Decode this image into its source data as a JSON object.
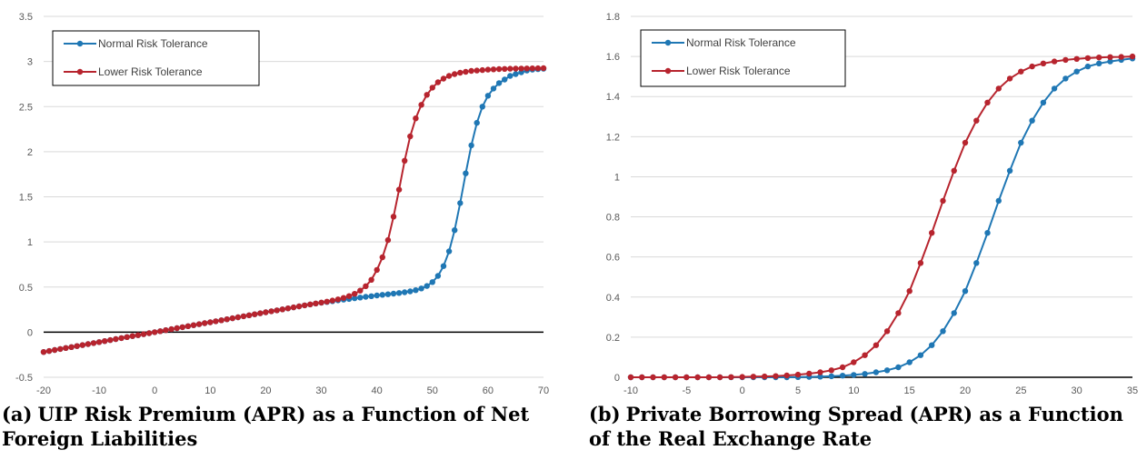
{
  "colors": {
    "normal": "#1f77b4",
    "lower": "#b7242e",
    "grid": "#d9d9d9",
    "zero_line": "#000000"
  },
  "captions": [
    {
      "label": "(a)",
      "text": "UIP Risk Premium (APR) as a Function of Net Foreign Liabilities"
    },
    {
      "label": "(b)",
      "text": "Private Borrowing Spread (APR) as a Function of the Real Exchange Rate"
    }
  ],
  "chart_data": [
    {
      "type": "line",
      "title": "",
      "xlabel": "",
      "ylabel": "",
      "xlim": [
        -20,
        70
      ],
      "ylim": [
        -0.5,
        3.5
      ],
      "xticks": [
        "-20",
        "-10",
        "0",
        "10",
        "20",
        "30",
        "40",
        "50",
        "60",
        "70"
      ],
      "yticks": [
        "-0.5",
        "0",
        "0.5",
        "1",
        "1.5",
        "2",
        "2.5",
        "3",
        "3.5"
      ],
      "grid": "horizontal",
      "legend": "top-left",
      "series": [
        {
          "name": "Normal Risk Tolerance",
          "color": "#1f77b4",
          "x": [
            -20,
            -19,
            -18,
            -17,
            -16,
            -15,
            -14,
            -13,
            -12,
            -11,
            -10,
            -9,
            -8,
            -7,
            -6,
            -5,
            -4,
            -3,
            -2,
            -1,
            0,
            1,
            2,
            3,
            4,
            5,
            6,
            7,
            8,
            9,
            10,
            11,
            12,
            13,
            14,
            15,
            16,
            17,
            18,
            19,
            20,
            21,
            22,
            23,
            24,
            25,
            26,
            27,
            28,
            29,
            30,
            31,
            32,
            33,
            34,
            35,
            36,
            37,
            38,
            39,
            40,
            41,
            42,
            43,
            44,
            45,
            46,
            47,
            48,
            49,
            50,
            51,
            52,
            53,
            54,
            55,
            56,
            57,
            58,
            59,
            60,
            61,
            62,
            63,
            64,
            65,
            66,
            67,
            68,
            69,
            70
          ],
          "y": [
            -0.22,
            -0.209,
            -0.198,
            -0.187,
            -0.176,
            -0.165,
            -0.154,
            -0.143,
            -0.132,
            -0.121,
            -0.11,
            -0.099,
            -0.088,
            -0.077,
            -0.066,
            -0.055,
            -0.044,
            -0.033,
            -0.022,
            -0.011,
            0,
            0.011,
            0.022,
            0.033,
            0.044,
            0.055,
            0.066,
            0.077,
            0.088,
            0.099,
            0.11,
            0.121,
            0.132,
            0.143,
            0.154,
            0.165,
            0.176,
            0.187,
            0.198,
            0.209,
            0.22,
            0.231,
            0.242,
            0.253,
            0.264,
            0.275,
            0.286,
            0.297,
            0.307,
            0.317,
            0.326,
            0.334,
            0.343,
            0.352,
            0.36,
            0.368,
            0.376,
            0.384,
            0.392,
            0.399,
            0.407,
            0.414,
            0.42,
            0.427,
            0.434,
            0.442,
            0.452,
            0.465,
            0.484,
            0.512,
            0.555,
            0.623,
            0.732,
            0.895,
            1.13,
            1.43,
            1.76,
            2.07,
            2.32,
            2.5,
            2.62,
            2.7,
            2.76,
            2.8,
            2.84,
            2.86,
            2.88,
            2.9,
            2.91,
            2.915,
            2.92
          ]
        },
        {
          "name": "Lower Risk Tolerance",
          "color": "#b7242e",
          "x": [
            -20,
            -19,
            -18,
            -17,
            -16,
            -15,
            -14,
            -13,
            -12,
            -11,
            -10,
            -9,
            -8,
            -7,
            -6,
            -5,
            -4,
            -3,
            -2,
            -1,
            0,
            1,
            2,
            3,
            4,
            5,
            6,
            7,
            8,
            9,
            10,
            11,
            12,
            13,
            14,
            15,
            16,
            17,
            18,
            19,
            20,
            21,
            22,
            23,
            24,
            25,
            26,
            27,
            28,
            29,
            30,
            31,
            32,
            33,
            34,
            35,
            36,
            37,
            38,
            39,
            40,
            41,
            42,
            43,
            44,
            45,
            46,
            47,
            48,
            49,
            50,
            51,
            52,
            53,
            54,
            55,
            56,
            57,
            58,
            59,
            60,
            61,
            62,
            63,
            64,
            65,
            66,
            67,
            68,
            69,
            70
          ],
          "y": [
            -0.22,
            -0.209,
            -0.198,
            -0.187,
            -0.176,
            -0.165,
            -0.154,
            -0.143,
            -0.132,
            -0.121,
            -0.11,
            -0.099,
            -0.088,
            -0.077,
            -0.066,
            -0.055,
            -0.044,
            -0.033,
            -0.022,
            -0.011,
            0,
            0.011,
            0.022,
            0.033,
            0.044,
            0.055,
            0.066,
            0.077,
            0.088,
            0.099,
            0.11,
            0.121,
            0.132,
            0.143,
            0.154,
            0.165,
            0.176,
            0.187,
            0.198,
            0.209,
            0.22,
            0.231,
            0.242,
            0.253,
            0.264,
            0.275,
            0.286,
            0.297,
            0.308,
            0.318,
            0.328,
            0.338,
            0.35,
            0.363,
            0.38,
            0.4,
            0.425,
            0.46,
            0.51,
            0.58,
            0.69,
            0.83,
            1.02,
            1.28,
            1.58,
            1.9,
            2.17,
            2.37,
            2.52,
            2.63,
            2.71,
            2.77,
            2.81,
            2.84,
            2.86,
            2.875,
            2.885,
            2.895,
            2.9,
            2.905,
            2.91,
            2.913,
            2.916,
            2.918,
            2.92,
            2.921,
            2.922,
            2.923,
            2.924,
            2.925,
            2.926
          ]
        }
      ]
    },
    {
      "type": "line",
      "title": "",
      "xlabel": "",
      "ylabel": "",
      "xlim": [
        -10,
        35
      ],
      "ylim": [
        0,
        1.8
      ],
      "xticks": [
        "-10",
        "-5",
        "0",
        "5",
        "10",
        "15",
        "20",
        "25",
        "30",
        "35"
      ],
      "yticks": [
        "0",
        "0.2",
        "0.4",
        "0.6",
        "0.8",
        "1",
        "1.2",
        "1.4",
        "1.6",
        "1.8"
      ],
      "grid": "horizontal",
      "legend": "top-left",
      "series": [
        {
          "name": "Normal Risk Tolerance",
          "color": "#1f77b4",
          "x": [
            -10,
            -9,
            -8,
            -7,
            -6,
            -5,
            -4,
            -3,
            -2,
            -1,
            0,
            1,
            2,
            3,
            4,
            5,
            6,
            7,
            8,
            9,
            10,
            11,
            12,
            13,
            14,
            15,
            16,
            17,
            18,
            19,
            20,
            21,
            22,
            23,
            24,
            25,
            26,
            27,
            28,
            29,
            30,
            31,
            32,
            33,
            34,
            35
          ],
          "y": [
            0,
            0,
            0,
            0,
            0,
            0,
            0,
            0,
            0,
            0,
            0,
            0,
            0,
            0,
            0,
            0.001,
            0.002,
            0.003,
            0.005,
            0.008,
            0.012,
            0.017,
            0.025,
            0.035,
            0.05,
            0.075,
            0.11,
            0.16,
            0.23,
            0.32,
            0.43,
            0.57,
            0.72,
            0.88,
            1.03,
            1.17,
            1.28,
            1.37,
            1.44,
            1.49,
            1.525,
            1.55,
            1.565,
            1.575,
            1.583,
            1.59
          ]
        },
        {
          "name": "Lower Risk Tolerance",
          "color": "#b7242e",
          "x": [
            -10,
            -9,
            -8,
            -7,
            -6,
            -5,
            -4,
            -3,
            -2,
            -1,
            0,
            1,
            2,
            3,
            4,
            5,
            6,
            7,
            8,
            9,
            10,
            11,
            12,
            13,
            14,
            15,
            16,
            17,
            18,
            19,
            20,
            21,
            22,
            23,
            24,
            25,
            26,
            27,
            28,
            29,
            30,
            31,
            32,
            33,
            34,
            35
          ],
          "y": [
            0,
            0,
            0,
            0,
            0,
            0,
            0,
            0,
            0,
            0.001,
            0.002,
            0.003,
            0.004,
            0.006,
            0.009,
            0.013,
            0.018,
            0.025,
            0.035,
            0.05,
            0.075,
            0.11,
            0.16,
            0.23,
            0.32,
            0.43,
            0.57,
            0.72,
            0.88,
            1.03,
            1.17,
            1.28,
            1.37,
            1.44,
            1.49,
            1.525,
            1.55,
            1.565,
            1.575,
            1.583,
            1.588,
            1.592,
            1.595,
            1.597,
            1.598,
            1.6
          ]
        }
      ]
    }
  ]
}
